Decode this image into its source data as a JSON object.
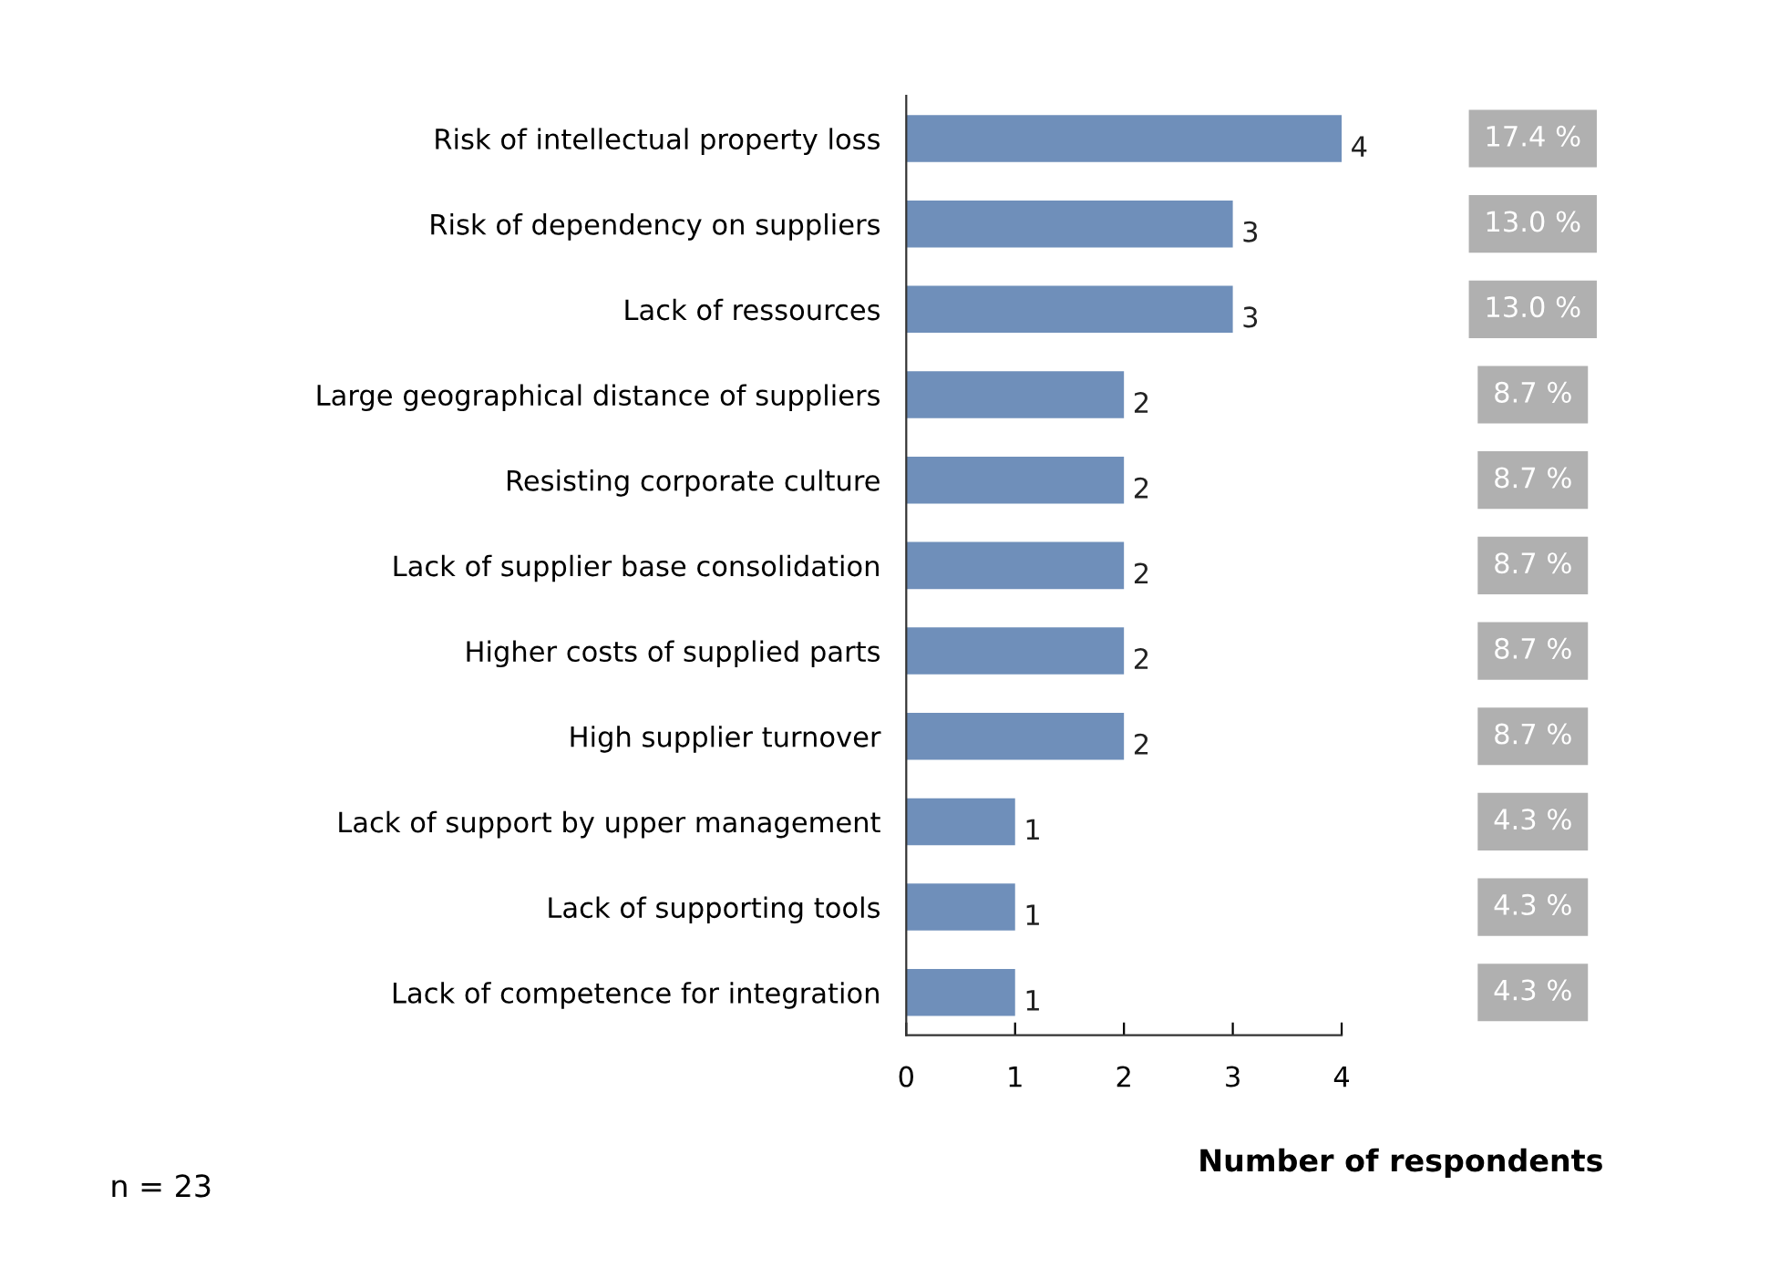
{
  "chart_data": {
    "type": "bar",
    "orientation": "horizontal",
    "xlabel": "Number of respondents",
    "categories": [
      "Risk of intellectual property loss",
      "Risk of dependency on suppliers",
      "Lack of ressources",
      "Large geographical distance of suppliers",
      "Resisting corporate culture",
      "Lack of supplier base consolidation",
      "Higher costs of supplied parts",
      "High supplier turnover",
      "Lack of support by upper management",
      "Lack of supporting tools",
      "Lack of competence for integration"
    ],
    "values": [
      4,
      3,
      3,
      2,
      2,
      2,
      2,
      2,
      1,
      1,
      1
    ],
    "color": "#6f8fba",
    "data_labels": true,
    "xlim": [
      0,
      4
    ],
    "xticks": [
      0,
      1,
      2,
      3,
      4
    ],
    "grid": false,
    "legend": false,
    "annotations": [
      "17.4 %",
      "13.0 %",
      "13.0 %",
      "8.7 %",
      "8.7 %",
      "8.7 %",
      "8.7 %",
      "8.7 %",
      "4.3 %",
      "4.3 %",
      "4.3 %",
      "n = 23"
    ]
  }
}
